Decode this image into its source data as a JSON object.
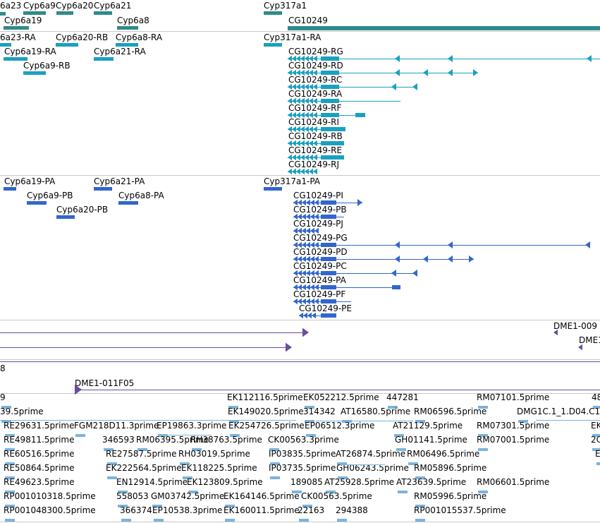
{
  "colors": {
    "gene": "#2e8b8b",
    "transcript": "#1ba0c0",
    "protein": "#3366cc",
    "clone": "#6a4c9c",
    "est": "#7ab4dc",
    "separator": "#c8c8c8",
    "background": "#ffffff"
  },
  "tracks": {
    "genes": {
      "labels": [
        "6a23",
        "Cyp6a9",
        "Cyp6a20",
        "Cyp6a21",
        "Cyp317a1",
        "Cyp6a19",
        "Cyp6a8",
        "CG10249"
      ]
    },
    "transcripts": {
      "labels": [
        "6a23-RA",
        "Cyp6a20-RB",
        "Cyp6a8-RA",
        "Cyp317a1-RA",
        "Cyp6a19-RA",
        "Cyp6a21-RA",
        "Cyp6a9-RB",
        "CG10249-RG",
        "CG10249-RD",
        "CG10249-RC",
        "CG10249-RA",
        "CG10249-RF",
        "CG10249-RI",
        "CG10249-RB",
        "CG10249-RE",
        "CG10249-RJ"
      ]
    },
    "proteins": {
      "labels": [
        "Cyp6a19-PA",
        "Cyp6a21-PA",
        "Cyp317a1-PA",
        "Cyp6a9-PB",
        "Cyp6a8-PA",
        "Cyp6a20-PB",
        "CG10249-PI",
        "CG10249-PB",
        "CG10249-PJ",
        "CG10249-PG",
        "CG10249-PD",
        "CG10249-PC",
        "CG10249-PA",
        "CG10249-PF",
        "CG10249-PE"
      ]
    },
    "clones": {
      "labels": [
        "DME1-009",
        "DME1",
        "8",
        "DME1-011F05"
      ]
    },
    "ests": {
      "labels": [
        "9",
        "EK112116.5prime",
        "EK052212.5prime",
        "447281",
        "RM07101.5prime",
        "48",
        "39.5prime",
        "EK149020.5prime",
        "314342",
        "AT16580.5prime",
        "RM06596.5prime",
        "DMG1C.1_1.D04.C1",
        "RE29631.5prime",
        "FGM218D11.3prime",
        "EP19863.3prime",
        "EK254726.5prime",
        "EP06512.3prime",
        "AT21129.5prime",
        "RM07301.5prime",
        "EK",
        "RE49811.5prime",
        "346593",
        "RM06395.5prime",
        "RH38763.5prime",
        "CK00563.3prime",
        "GH01141.5prime",
        "RM07001.5prime",
        "2C",
        "RE60516.5prime",
        "RE27587.5prime",
        "RH03019.5prime",
        "IP03835.5prime",
        "AT26874.5prime",
        "RM06496.5prime",
        "E",
        "RE50864.5prime",
        "EK222564.5prime",
        "EK118225.5prime",
        "IP03735.5prime",
        "GH06243.5prime",
        "RM05896.5prime",
        "RE49623.5prime",
        "EN12914.5prime",
        "EK123809.5prime",
        "189085",
        "AT25928.5prime",
        "AT23639.5prime",
        "RM06601.5prime",
        "RP001010318.5prime",
        "558053",
        "GM03742.5prime",
        "EK164146.5prime",
        "CK00563.5prime",
        "RM05996.5prime",
        "RP001048300.5prime",
        "366374",
        "EP10538.3prime",
        "EK160011.5prime",
        "22163",
        "294388",
        "RP001015537.5prime"
      ]
    }
  }
}
